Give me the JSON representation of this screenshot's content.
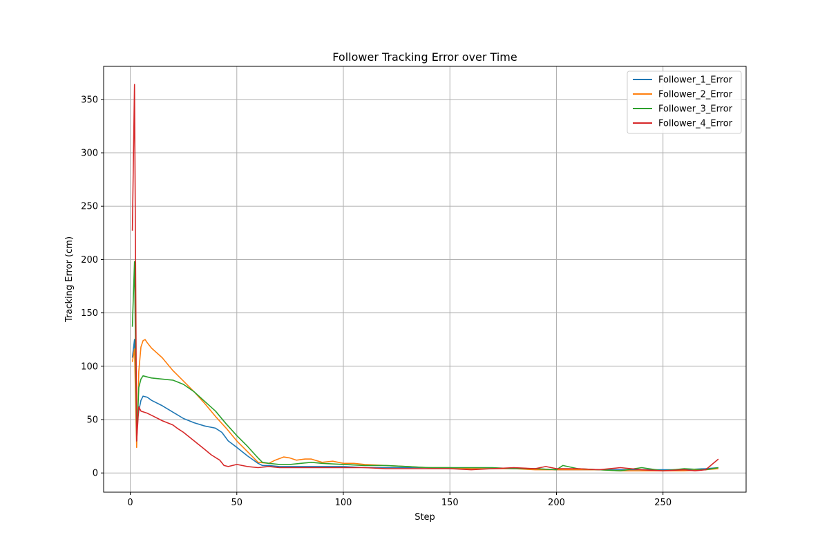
{
  "chart_data": {
    "type": "line",
    "title": "Follower Tracking Error over Time",
    "xlabel": "Step",
    "ylabel": "Tracking Error (cm)",
    "xlim": [
      -12.5,
      289
    ],
    "ylim": [
      -18,
      381
    ],
    "xticks": [
      0,
      50,
      100,
      150,
      200,
      250
    ],
    "yticks": [
      0,
      50,
      100,
      150,
      200,
      250,
      300,
      350
    ],
    "grid": true,
    "legend_position": "top-right",
    "series": [
      {
        "name": "Follower_1_Error",
        "color": "#1f77b4",
        "points": [
          [
            1,
            108
          ],
          [
            2,
            125
          ],
          [
            3,
            45
          ],
          [
            4,
            58
          ],
          [
            5,
            68
          ],
          [
            6,
            72
          ],
          [
            8,
            71
          ],
          [
            10,
            68
          ],
          [
            15,
            63
          ],
          [
            20,
            57
          ],
          [
            25,
            51
          ],
          [
            30,
            47
          ],
          [
            35,
            44
          ],
          [
            40,
            42
          ],
          [
            43,
            38
          ],
          [
            46,
            30
          ],
          [
            50,
            24
          ],
          [
            55,
            16
          ],
          [
            60,
            9
          ],
          [
            62,
            7
          ],
          [
            65,
            7
          ],
          [
            70,
            6
          ],
          [
            80,
            6
          ],
          [
            90,
            6
          ],
          [
            100,
            6
          ],
          [
            110,
            5
          ],
          [
            120,
            5
          ],
          [
            130,
            5
          ],
          [
            140,
            5
          ],
          [
            150,
            4
          ],
          [
            160,
            4
          ],
          [
            170,
            4
          ],
          [
            180,
            4
          ],
          [
            190,
            4
          ],
          [
            200,
            3
          ],
          [
            210,
            3
          ],
          [
            220,
            3
          ],
          [
            230,
            3
          ],
          [
            240,
            3
          ],
          [
            250,
            3
          ],
          [
            260,
            3
          ],
          [
            270,
            4
          ],
          [
            276,
            5
          ]
        ]
      },
      {
        "name": "Follower_2_Error",
        "color": "#ff7f0e",
        "points": [
          [
            1,
            104
          ],
          [
            2,
            116
          ],
          [
            3,
            24
          ],
          [
            4,
            95
          ],
          [
            5,
            118
          ],
          [
            6,
            124
          ],
          [
            7,
            125
          ],
          [
            8,
            122
          ],
          [
            10,
            117
          ],
          [
            15,
            108
          ],
          [
            20,
            96
          ],
          [
            25,
            86
          ],
          [
            30,
            76
          ],
          [
            35,
            65
          ],
          [
            40,
            53
          ],
          [
            45,
            42
          ],
          [
            50,
            30
          ],
          [
            55,
            20
          ],
          [
            60,
            10
          ],
          [
            65,
            9
          ],
          [
            68,
            12
          ],
          [
            72,
            15
          ],
          [
            75,
            14
          ],
          [
            78,
            12
          ],
          [
            82,
            13
          ],
          [
            85,
            13
          ],
          [
            90,
            10
          ],
          [
            95,
            11
          ],
          [
            100,
            9
          ],
          [
            105,
            9
          ],
          [
            110,
            8
          ],
          [
            120,
            7
          ],
          [
            130,
            6
          ],
          [
            140,
            5
          ],
          [
            150,
            5
          ],
          [
            160,
            4
          ],
          [
            170,
            4
          ],
          [
            180,
            4
          ],
          [
            190,
            3
          ],
          [
            200,
            3
          ],
          [
            210,
            3
          ],
          [
            220,
            3
          ],
          [
            230,
            2
          ],
          [
            240,
            2
          ],
          [
            250,
            2
          ],
          [
            260,
            2
          ],
          [
            270,
            3
          ],
          [
            276,
            4
          ]
        ]
      },
      {
        "name": "Follower_3_Error",
        "color": "#2ca02c",
        "points": [
          [
            1,
            137
          ],
          [
            2,
            198
          ],
          [
            3,
            30
          ],
          [
            4,
            80
          ],
          [
            5,
            88
          ],
          [
            6,
            91
          ],
          [
            8,
            90
          ],
          [
            10,
            89
          ],
          [
            15,
            88
          ],
          [
            20,
            87
          ],
          [
            25,
            83
          ],
          [
            30,
            76
          ],
          [
            35,
            67
          ],
          [
            40,
            58
          ],
          [
            45,
            46
          ],
          [
            50,
            35
          ],
          [
            55,
            25
          ],
          [
            60,
            14
          ],
          [
            62,
            10
          ],
          [
            65,
            9
          ],
          [
            70,
            8
          ],
          [
            75,
            8
          ],
          [
            80,
            9
          ],
          [
            85,
            10
          ],
          [
            90,
            9
          ],
          [
            100,
            8
          ],
          [
            110,
            7
          ],
          [
            120,
            7
          ],
          [
            130,
            6
          ],
          [
            140,
            5
          ],
          [
            150,
            5
          ],
          [
            160,
            5
          ],
          [
            170,
            5
          ],
          [
            180,
            4
          ],
          [
            190,
            4
          ],
          [
            200,
            3
          ],
          [
            203,
            7
          ],
          [
            210,
            4
          ],
          [
            220,
            3
          ],
          [
            230,
            2
          ],
          [
            240,
            5
          ],
          [
            250,
            2
          ],
          [
            260,
            4
          ],
          [
            270,
            3
          ],
          [
            276,
            5
          ]
        ]
      },
      {
        "name": "Follower_4_Error",
        "color": "#d62728",
        "points": [
          [
            1,
            227
          ],
          [
            2,
            364
          ],
          [
            3,
            30
          ],
          [
            4,
            62
          ],
          [
            5,
            58
          ],
          [
            8,
            56
          ],
          [
            10,
            54
          ],
          [
            15,
            49
          ],
          [
            20,
            45
          ],
          [
            22,
            42
          ],
          [
            25,
            38
          ],
          [
            30,
            30
          ],
          [
            35,
            22
          ],
          [
            38,
            17
          ],
          [
            42,
            12
          ],
          [
            44,
            7
          ],
          [
            46,
            6
          ],
          [
            50,
            8
          ],
          [
            55,
            6
          ],
          [
            60,
            5
          ],
          [
            65,
            6
          ],
          [
            70,
            5
          ],
          [
            80,
            5
          ],
          [
            90,
            5
          ],
          [
            100,
            5
          ],
          [
            110,
            5
          ],
          [
            120,
            4
          ],
          [
            130,
            4
          ],
          [
            140,
            4
          ],
          [
            150,
            4
          ],
          [
            160,
            3
          ],
          [
            170,
            4
          ],
          [
            180,
            5
          ],
          [
            190,
            4
          ],
          [
            195,
            6
          ],
          [
            200,
            4
          ],
          [
            210,
            4
          ],
          [
            220,
            3
          ],
          [
            230,
            5
          ],
          [
            240,
            3
          ],
          [
            250,
            2
          ],
          [
            260,
            3
          ],
          [
            265,
            2
          ],
          [
            270,
            3
          ],
          [
            273,
            8
          ],
          [
            276,
            13
          ]
        ]
      }
    ]
  }
}
